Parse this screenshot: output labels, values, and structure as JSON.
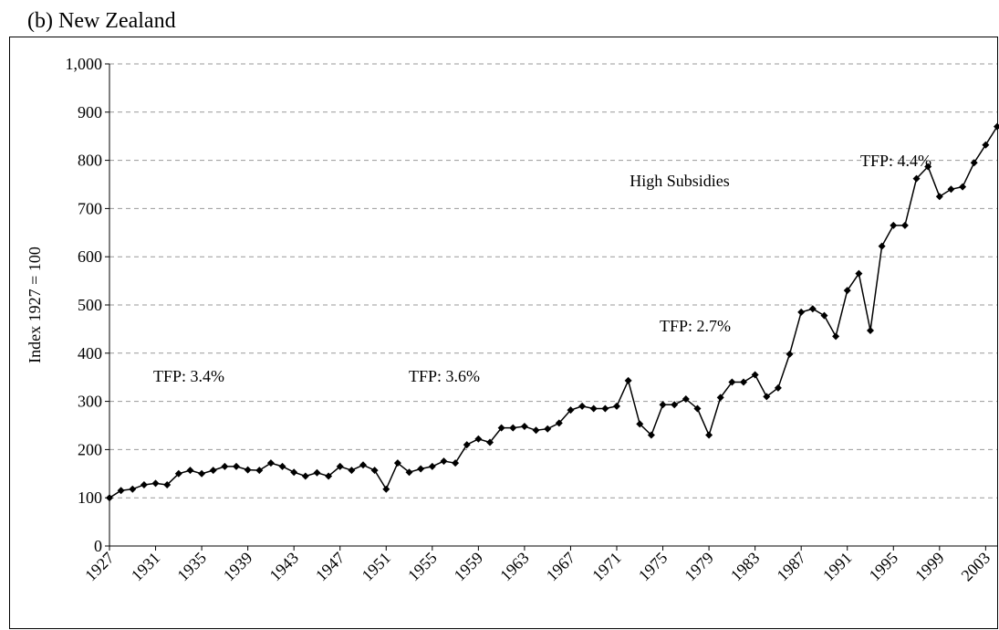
{
  "chart_data": {
    "type": "line",
    "title": "(b) New Zealand",
    "y_label": "Index 1927 = 100",
    "x": [
      1927,
      1928,
      1929,
      1930,
      1931,
      1932,
      1933,
      1934,
      1935,
      1936,
      1937,
      1938,
      1939,
      1940,
      1941,
      1942,
      1943,
      1944,
      1945,
      1946,
      1947,
      1948,
      1949,
      1950,
      1951,
      1952,
      1953,
      1954,
      1955,
      1956,
      1957,
      1958,
      1959,
      1960,
      1961,
      1962,
      1963,
      1964,
      1965,
      1966,
      1967,
      1968,
      1969,
      1970,
      1971,
      1972,
      1973,
      1974,
      1975,
      1976,
      1977,
      1978,
      1979,
      1980,
      1981,
      1982,
      1983,
      1984,
      1985,
      1986,
      1987,
      1988,
      1989,
      1990,
      1991,
      1992,
      1993,
      1994,
      1995,
      1996,
      1997,
      1998,
      1999,
      2000,
      2001,
      2002,
      2003,
      2004
    ],
    "series": [
      {
        "name": "Index",
        "color": "#000000",
        "values": [
          100,
          115,
          118,
          127,
          130,
          127,
          150,
          157,
          150,
          157,
          165,
          165,
          158,
          157,
          172,
          165,
          153,
          145,
          152,
          145,
          165,
          157,
          168,
          157,
          118,
          172,
          153,
          160,
          165,
          176,
          172,
          210,
          222,
          215,
          245,
          245,
          248,
          240,
          243,
          255,
          282,
          290,
          285,
          285,
          290,
          343,
          253,
          230,
          293,
          293,
          305,
          285,
          230,
          308,
          340,
          340,
          355,
          310,
          328,
          398,
          485,
          492,
          478,
          435,
          530,
          565,
          447,
          622,
          665,
          665,
          762,
          787,
          725,
          740,
          745,
          795,
          832,
          870
        ]
      }
    ],
    "xlim": [
      1927,
      2004
    ],
    "xticks": [
      1927,
      1931,
      1935,
      1939,
      1943,
      1947,
      1951,
      1955,
      1959,
      1963,
      1967,
      1971,
      1975,
      1979,
      1983,
      1987,
      1991,
      1995,
      1999,
      2003
    ],
    "ylim": [
      0,
      1000
    ],
    "yticks": [
      0,
      100,
      200,
      300,
      400,
      500,
      600,
      700,
      800,
      900,
      {
        "value": 1000,
        "label": "1,000"
      }
    ],
    "grid": true,
    "annotations": [
      "TFP: 3.4%",
      "TFP: 3.6%",
      "TFP: 2.7%",
      "High Subsidies",
      "TFP: 4.4%"
    ]
  }
}
